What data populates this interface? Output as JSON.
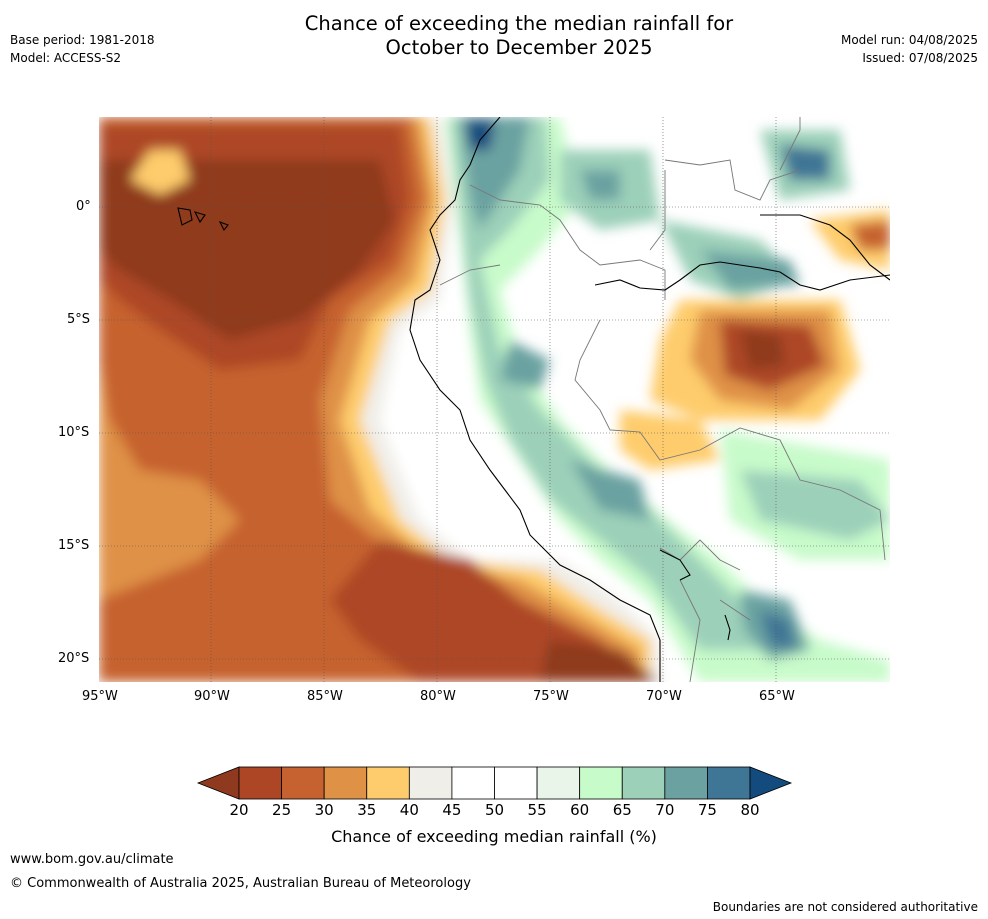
{
  "header": {
    "title_line1": "Chance of exceeding the median rainfall for",
    "title_line2": "October to December 2025",
    "base_period": "Base period: 1981-2018",
    "model": "Model: ACCESS-S2",
    "model_run": "Model run: 04/08/2025",
    "issued": "Issued: 07/08/2025"
  },
  "map": {
    "lat_labels": [
      "0°",
      "5°S",
      "10°S",
      "15°S",
      "20°S"
    ],
    "lon_labels": [
      "95°W",
      "90°W",
      "85°W",
      "80°W",
      "75°W",
      "70°W",
      "65°W"
    ]
  },
  "colorbar": {
    "ticks": [
      "20",
      "25",
      "30",
      "35",
      "40",
      "45",
      "50",
      "55",
      "60",
      "65",
      "70",
      "75",
      "80"
    ],
    "label": "Chance of exceeding median rainfall (%)",
    "colors": [
      "#8f3a1f",
      "#ad4625",
      "#c6622f",
      "#df9146",
      "#fecc6c",
      "#f0eee9",
      "#ffffff",
      "#ffffff",
      "#e9f5e9",
      "#c8fbca",
      "#9cd0b9",
      "#6ba2a1",
      "#3f7695",
      "#144b7f"
    ]
  },
  "footer": {
    "url": "www.bom.gov.au/climate",
    "copyright": "© Commonwealth of Australia 2025, Australian Bureau of Meteorology",
    "disclaimer": "Boundaries are not considered authoritative"
  }
}
